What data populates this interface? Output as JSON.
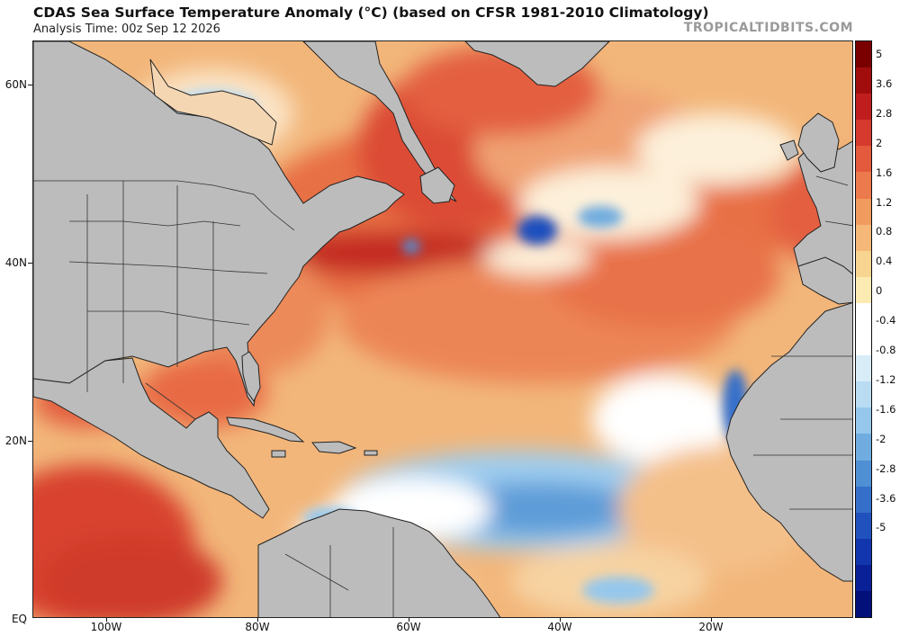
{
  "header": {
    "title": "CDAS Sea Surface Temperature Anomaly (°C) (based on CFSR 1981-2010 Climatology)",
    "subtitle": "Analysis Time: 00z Sep 12 2026",
    "brand": "TROPICALTIDBITS.COM"
  },
  "map": {
    "lat_labels": [
      "60N",
      "40N",
      "20N",
      "EQ"
    ],
    "lon_labels": [
      "100W",
      "80W",
      "60W",
      "40W",
      "20W"
    ],
    "colors": {
      "land": "#bcbcbc",
      "borders": "#222222",
      "ocean_base": "#f2b67a"
    },
    "anomaly_regions": [
      {
        "label": "warm North Atlantic / Gulf Stream",
        "value": "warm"
      },
      {
        "label": "cool tropical Atlantic (MDR)",
        "value": "cool"
      },
      {
        "label": "cool NW African upwelling coast",
        "value": "cool"
      },
      {
        "label": "warm eastern Pacific",
        "value": "warm"
      }
    ]
  },
  "colorbar": {
    "labels": [
      "5",
      "3.6",
      "2.8",
      "2",
      "1.6",
      "1.2",
      "0.8",
      "0.4",
      "0",
      "-0.4",
      "-0.8",
      "-1.2",
      "-1.6",
      "-2",
      "-2.8",
      "-3.6",
      "-5"
    ],
    "colors": [
      "#7a0000",
      "#a10d0d",
      "#c01e1e",
      "#d6392d",
      "#e35a3c",
      "#ec7a4c",
      "#f19b5e",
      "#f5b878",
      "#f8d491",
      "#fbeab2",
      "#ffffff",
      "#ffffff",
      "#d8ecf8",
      "#b9dcf2",
      "#95c7ec",
      "#70acdf",
      "#4f8fd4",
      "#356fca",
      "#2151bd",
      "#1236ae",
      "#0a2096",
      "#03107a"
    ]
  }
}
